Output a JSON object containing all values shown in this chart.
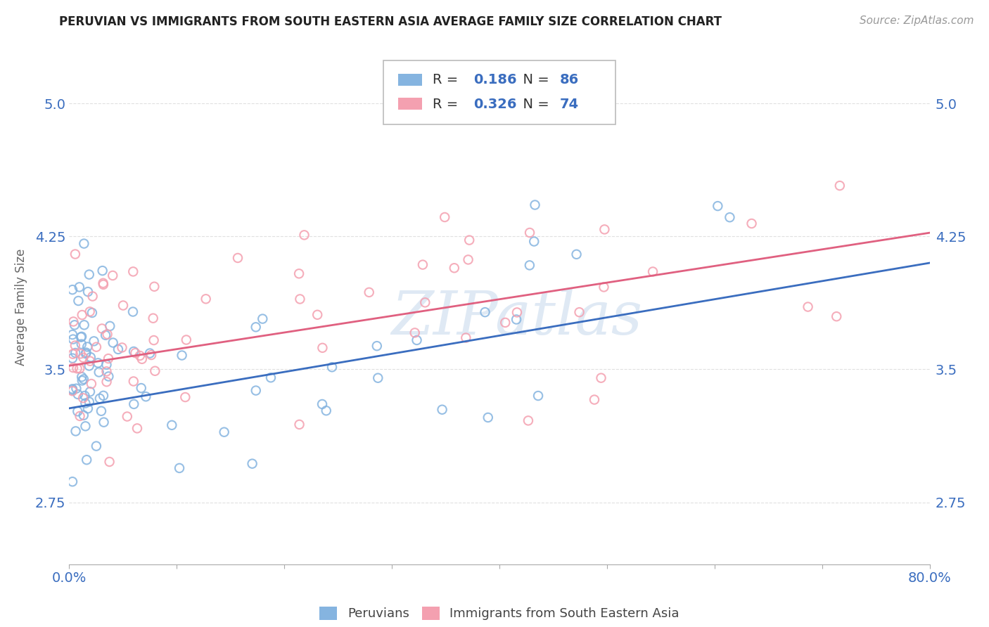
{
  "title": "PERUVIAN VS IMMIGRANTS FROM SOUTH EASTERN ASIA AVERAGE FAMILY SIZE CORRELATION CHART",
  "source": "Source: ZipAtlas.com",
  "ylabel": "Average Family Size",
  "yticks": [
    2.75,
    3.5,
    4.25,
    5.0
  ],
  "xlim": [
    0.0,
    80.0
  ],
  "ylim": [
    2.4,
    5.3
  ],
  "blue_color": "#85B4E0",
  "pink_color": "#F4A0B0",
  "blue_line_color": "#3A6DBF",
  "pink_line_color": "#E06080",
  "legend_R_blue": "R = 0.186",
  "legend_N_blue": "N = 86",
  "legend_R_pink": "R = 0.326",
  "legend_N_pink": "N = 74",
  "blue_line_y0": 3.28,
  "blue_line_y1": 4.1,
  "pink_line_y0": 3.52,
  "pink_line_y1": 4.27,
  "xtick_positions": [
    0,
    10,
    20,
    30,
    40,
    50,
    60,
    70,
    80
  ],
  "xtick_labels_show": [
    0,
    80
  ],
  "watermark_text": "ZIPatlas",
  "tick_color": "#3A6DBF",
  "label_color": "#3A6DBF",
  "ylabel_color": "#666666"
}
